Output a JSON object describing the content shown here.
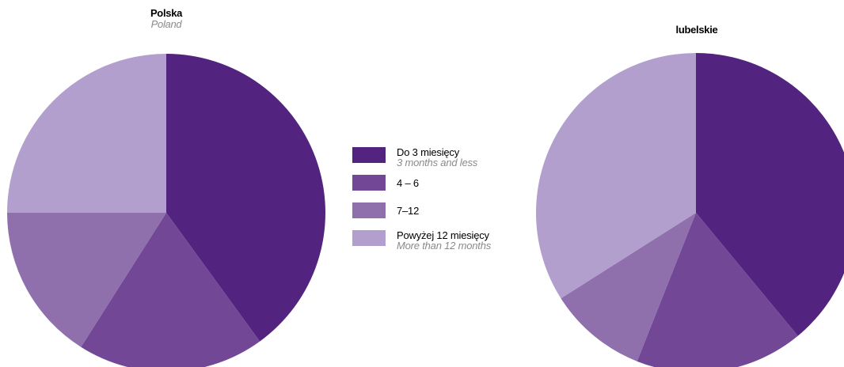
{
  "chart_data": [
    {
      "type": "pie",
      "title": "Polska",
      "subtitle": "Poland",
      "categories": [
        "Do 3 miesięcy",
        "4 – 6",
        "7–12",
        "Powyżej 12 miesięcy"
      ],
      "values": [
        40,
        19,
        16,
        25
      ],
      "unit": "%"
    },
    {
      "type": "pie",
      "title": "lubelskie",
      "subtitle": "",
      "categories": [
        "Do 3 miesięcy",
        "4 – 6",
        "7–12",
        "Powyżej 12 miesięcy"
      ],
      "values": [
        39,
        17,
        10,
        34
      ],
      "unit": "%"
    }
  ],
  "legend": {
    "items": [
      {
        "label": "Do 3 miesięcy",
        "label_en": "3 months and less",
        "color": "#52237f"
      },
      {
        "label": "4 – 6",
        "label_en": "",
        "color": "#724796"
      },
      {
        "label": "7–12",
        "label_en": "",
        "color": "#8f70ad"
      },
      {
        "label": "Powyżej 12 miesięcy",
        "label_en": "More than 12 months",
        "color": "#b29fcd"
      }
    ]
  }
}
